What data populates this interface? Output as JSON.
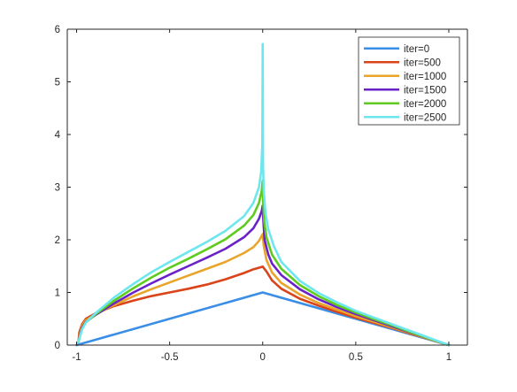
{
  "chart_data": {
    "type": "line",
    "title": "",
    "xlabel": "",
    "ylabel": "",
    "xlim": [
      -1.05,
      1.1
    ],
    "ylim": [
      0,
      6
    ],
    "xticks": [
      -1,
      -0.5,
      0,
      0.5,
      1
    ],
    "xtick_labels": [
      "-1",
      "-0.5",
      "0",
      "0.5",
      "1"
    ],
    "yticks": [
      0,
      1,
      2,
      3,
      4,
      5,
      6
    ],
    "ytick_labels": [
      "0",
      "1",
      "2",
      "3",
      "4",
      "5",
      "6"
    ],
    "grid": false,
    "legend_position": "top-right",
    "series": [
      {
        "name": "iter=0",
        "color": "#3a8ee6",
        "x": [
          -1,
          -0.5,
          0,
          0.5,
          1
        ],
        "y": [
          0,
          0.5,
          1,
          0.5,
          0
        ]
      },
      {
        "name": "iter=500",
        "color": "#d9441a",
        "x": [
          -0.99,
          -0.985,
          -0.97,
          -0.95,
          -0.9,
          -0.8,
          -0.7,
          -0.6,
          -0.5,
          -0.4,
          -0.3,
          -0.2,
          -0.1,
          -0.05,
          0,
          0.02,
          0.05,
          0.1,
          0.2,
          0.3,
          0.4,
          0.5,
          0.6,
          0.7,
          0.8,
          0.9,
          1
        ],
        "y": [
          0.05,
          0.25,
          0.4,
          0.5,
          0.6,
          0.74,
          0.84,
          0.93,
          1.0,
          1.07,
          1.15,
          1.25,
          1.37,
          1.44,
          1.49,
          1.4,
          1.23,
          1.07,
          0.88,
          0.75,
          0.63,
          0.52,
          0.42,
          0.32,
          0.21,
          0.11,
          0
        ]
      },
      {
        "name": "iter=1000",
        "color": "#e8a52a",
        "x": [
          -0.99,
          -0.98,
          -0.97,
          -0.95,
          -0.9,
          -0.8,
          -0.7,
          -0.6,
          -0.5,
          -0.4,
          -0.3,
          -0.2,
          -0.1,
          -0.05,
          -0.02,
          0,
          0.005,
          0.02,
          0.05,
          0.1,
          0.2,
          0.3,
          0.4,
          0.5,
          0.6,
          0.7,
          0.8,
          0.9,
          1
        ],
        "y": [
          0.05,
          0.25,
          0.37,
          0.47,
          0.58,
          0.76,
          0.92,
          1.06,
          1.19,
          1.32,
          1.45,
          1.58,
          1.75,
          1.86,
          1.98,
          2.11,
          1.9,
          1.62,
          1.38,
          1.18,
          0.96,
          0.8,
          0.67,
          0.55,
          0.44,
          0.33,
          0.22,
          0.11,
          0
        ]
      },
      {
        "name": "iter=1500",
        "color": "#6a22c8",
        "x": [
          -0.99,
          -0.98,
          -0.97,
          -0.95,
          -0.9,
          -0.8,
          -0.7,
          -0.6,
          -0.5,
          -0.4,
          -0.3,
          -0.2,
          -0.1,
          -0.05,
          -0.02,
          -0.005,
          0,
          0.003,
          0.01,
          0.03,
          0.05,
          0.1,
          0.2,
          0.3,
          0.4,
          0.5,
          0.6,
          0.7,
          0.8,
          0.9,
          1
        ],
        "y": [
          0.05,
          0.22,
          0.33,
          0.44,
          0.57,
          0.79,
          0.99,
          1.17,
          1.34,
          1.5,
          1.66,
          1.83,
          2.05,
          2.22,
          2.4,
          2.55,
          2.65,
          2.4,
          2.0,
          1.72,
          1.55,
          1.33,
          1.06,
          0.87,
          0.72,
          0.59,
          0.47,
          0.35,
          0.23,
          0.12,
          0
        ]
      },
      {
        "name": "iter=2000",
        "color": "#5ecb1e",
        "x": [
          -0.99,
          -0.98,
          -0.97,
          -0.95,
          -0.9,
          -0.8,
          -0.7,
          -0.6,
          -0.5,
          -0.4,
          -0.3,
          -0.2,
          -0.1,
          -0.05,
          -0.02,
          -0.005,
          0,
          0.002,
          0.008,
          0.02,
          0.05,
          0.1,
          0.2,
          0.3,
          0.4,
          0.5,
          0.6,
          0.7,
          0.8,
          0.9,
          1
        ],
        "y": [
          0.05,
          0.2,
          0.31,
          0.43,
          0.58,
          0.84,
          1.07,
          1.28,
          1.47,
          1.64,
          1.82,
          2.01,
          2.27,
          2.47,
          2.7,
          2.93,
          3.12,
          2.75,
          2.35,
          2.05,
          1.72,
          1.45,
          1.14,
          0.93,
          0.76,
          0.62,
          0.49,
          0.37,
          0.24,
          0.12,
          0
        ]
      },
      {
        "name": "iter=2500",
        "color": "#6ee6ee",
        "x": [
          -0.99,
          -0.98,
          -0.97,
          -0.95,
          -0.9,
          -0.8,
          -0.7,
          -0.6,
          -0.5,
          -0.4,
          -0.3,
          -0.2,
          -0.1,
          -0.05,
          -0.02,
          -0.008,
          -0.002,
          0,
          0.002,
          0.006,
          0.015,
          0.03,
          0.06,
          0.1,
          0.2,
          0.3,
          0.4,
          0.5,
          0.6,
          0.7,
          0.8,
          0.9,
          1
        ],
        "y": [
          0.05,
          0.19,
          0.3,
          0.43,
          0.6,
          0.9,
          1.15,
          1.38,
          1.58,
          1.77,
          1.96,
          2.17,
          2.45,
          2.7,
          3.0,
          3.3,
          3.8,
          5.72,
          3.4,
          2.9,
          2.5,
          2.2,
          1.88,
          1.58,
          1.22,
          0.99,
          0.81,
          0.65,
          0.52,
          0.39,
          0.26,
          0.13,
          0
        ]
      }
    ]
  }
}
